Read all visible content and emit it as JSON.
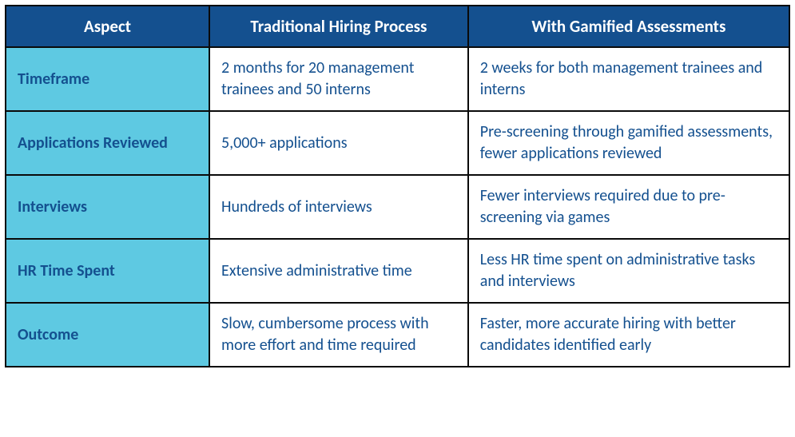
{
  "table": {
    "border_color": "#0a0a0a",
    "header_bg": "#14508f",
    "header_text_color": "#ffffff",
    "aspect_bg": "#5ec9e2",
    "aspect_text_color": "#14508f",
    "cell_bg": "#ffffff",
    "cell_text_color": "#14508f",
    "col_widths": [
      "26%",
      "33%",
      "41%"
    ],
    "columns": [
      "Aspect",
      "Traditional Hiring Process",
      "With Gamified Assessments"
    ],
    "rows": [
      {
        "aspect": "Timeframe",
        "traditional": "2 months for 20 management trainees and 50 interns",
        "gamified": "2 weeks for both management trainees and interns"
      },
      {
        "aspect": "Applications Reviewed",
        "traditional": "5,000+ applications",
        "gamified": "Pre-screening through gamified assessments, fewer applications reviewed"
      },
      {
        "aspect": "Interviews",
        "traditional": "Hundreds of interviews",
        "gamified": "Fewer interviews required due to pre-screening via games"
      },
      {
        "aspect": "HR Time Spent",
        "traditional": "Extensive administrative time",
        "gamified": "Less HR time spent on administrative tasks and interviews"
      },
      {
        "aspect": "Outcome",
        "traditional": "Slow, cumbersome process with more effort and time required",
        "gamified": "Faster, more accurate hiring with better candidates identified early"
      }
    ]
  }
}
